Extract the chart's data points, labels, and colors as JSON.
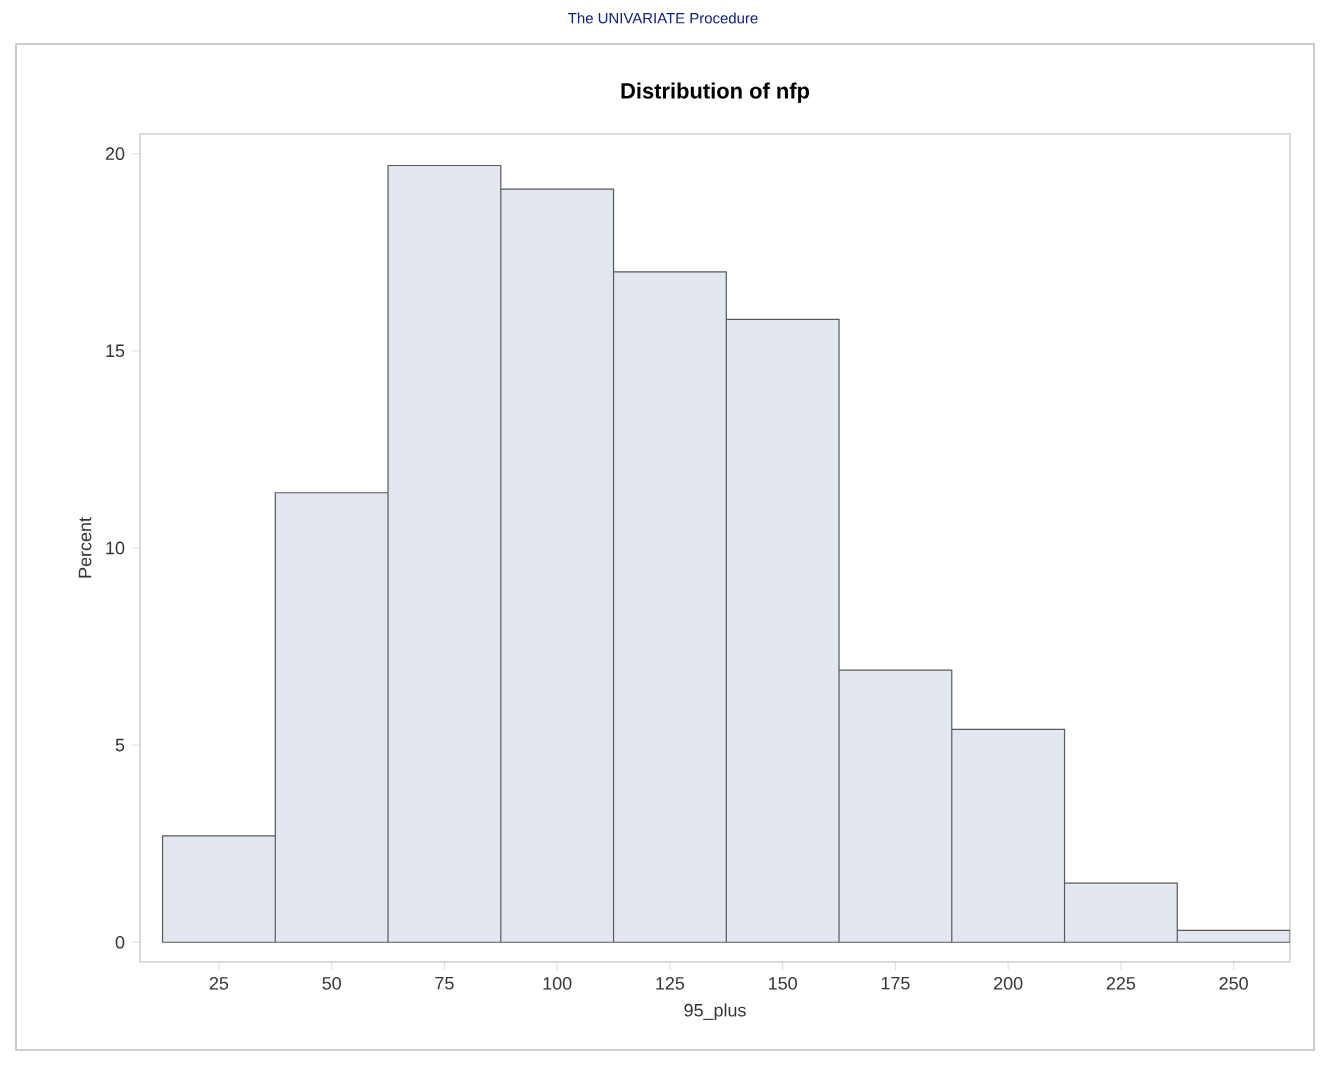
{
  "chart_data": {
    "type": "histogram",
    "subtitle": "The UNIVARIATE Procedure",
    "title": "Distribution of nfp",
    "xlabel": "95_plus",
    "ylabel": "Percent",
    "bins": [
      12.5,
      37.5,
      62.5,
      87.5,
      112.5,
      137.5,
      162.5,
      187.5,
      212.5,
      237.5,
      262.5
    ],
    "values": [
      2.7,
      11.4,
      19.7,
      19.1,
      17.0,
      15.8,
      6.9,
      5.4,
      1.5,
      0.3
    ],
    "color": "#e3e8f0",
    "xlim": [
      7.5,
      262.5
    ],
    "ylim": [
      -0.5,
      20.5
    ],
    "xticks": [
      25,
      50,
      75,
      100,
      125,
      150,
      175,
      200,
      225,
      250
    ],
    "yticks": [
      0,
      5,
      10,
      15,
      20
    ]
  }
}
